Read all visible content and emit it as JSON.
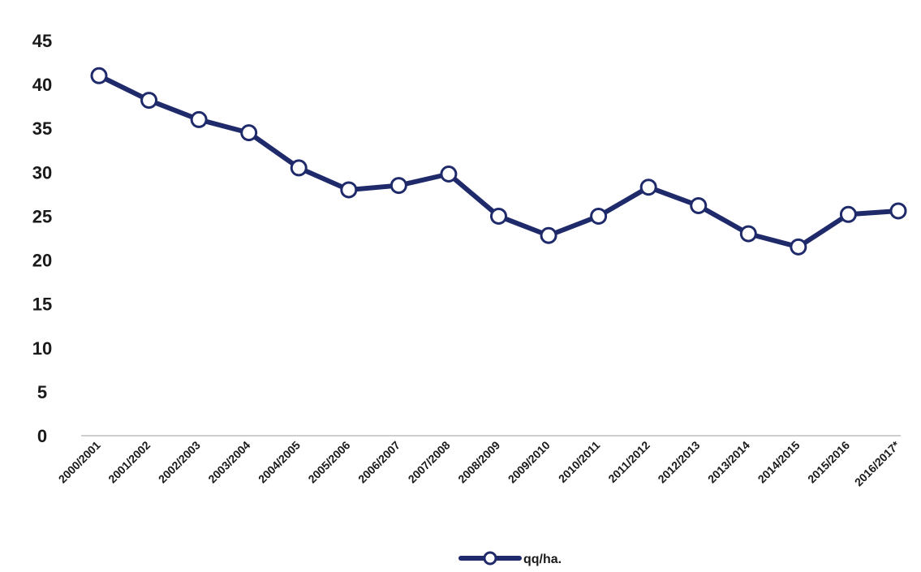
{
  "chart_data": {
    "type": "line",
    "categories": [
      "2000/2001",
      "2001/2002",
      "2002/2003",
      "2003/2004",
      "2004/2005",
      "2005/2006",
      "2006/2007",
      "2007/2008",
      "2008/2009",
      "2009/2010",
      "2010/2011",
      "2011/2012",
      "2012/2013",
      "2013/2014",
      "2014/2015",
      "2015/2016",
      "2016/2017*"
    ],
    "series": [
      {
        "name": "qq/ha.",
        "values": [
          41,
          38.2,
          36,
          34.5,
          30.5,
          28,
          28.5,
          29.8,
          25,
          22.8,
          25,
          28.3,
          26.2,
          23,
          21.5,
          25.2,
          25.6
        ],
        "color": "#1f2a6b"
      }
    ],
    "yticks": [
      0,
      5,
      10,
      15,
      20,
      25,
      30,
      35,
      40,
      45
    ],
    "ylim": [
      0,
      45
    ],
    "title": "",
    "xlabel": "",
    "ylabel": "",
    "legend": "bottom",
    "grid": false
  }
}
